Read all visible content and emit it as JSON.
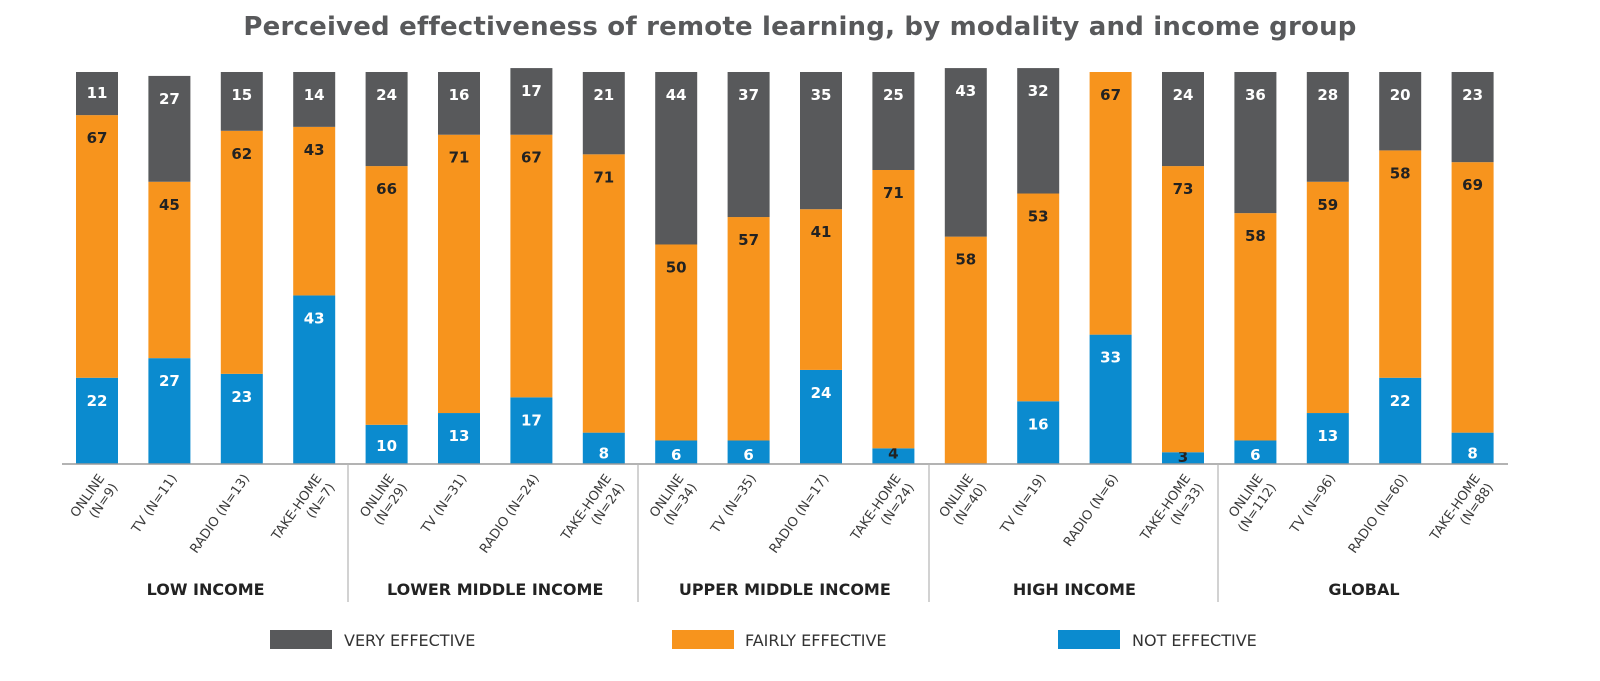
{
  "chart_data": {
    "type": "bar",
    "stacked": true,
    "title": "Perceived effectiveness of remote learning, by modality and income group",
    "ylim": [
      0,
      100
    ],
    "grid": false,
    "legend_position": "bottom",
    "colors": {
      "very_effective": "#58595b",
      "fairly_effective": "#f7941d",
      "not_effective": "#0b8bcf"
    },
    "legend": [
      {
        "key": "very_effective",
        "label": "VERY EFFECTIVE"
      },
      {
        "key": "fairly_effective",
        "label": "FAIRLY EFFECTIVE"
      },
      {
        "key": "not_effective",
        "label": "NOT EFFECTIVE"
      }
    ],
    "groups": [
      {
        "name": "LOW INCOME",
        "bars": [
          {
            "label_lines": [
              "ONLINE",
              "(N=9)"
            ],
            "not_effective": 22,
            "fairly_effective": 67,
            "very_effective": 11
          },
          {
            "label_lines": [
              "TV (N=11)"
            ],
            "not_effective": 27,
            "fairly_effective": 45,
            "very_effective": 27
          },
          {
            "label_lines": [
              "RADIO (N=13)"
            ],
            "not_effective": 23,
            "fairly_effective": 62,
            "very_effective": 15
          },
          {
            "label_lines": [
              "TAKE-HOME",
              "(N=7)"
            ],
            "not_effective": 43,
            "fairly_effective": 43,
            "very_effective": 14
          }
        ]
      },
      {
        "name": "LOWER MIDDLE INCOME",
        "bars": [
          {
            "label_lines": [
              "ONLINE",
              "(N=29)"
            ],
            "not_effective": 10,
            "fairly_effective": 66,
            "very_effective": 24
          },
          {
            "label_lines": [
              "TV (N=31)"
            ],
            "not_effective": 13,
            "fairly_effective": 71,
            "very_effective": 16
          },
          {
            "label_lines": [
              "RADIO (N=24)"
            ],
            "not_effective": 17,
            "fairly_effective": 67,
            "very_effective": 17
          },
          {
            "label_lines": [
              "TAKE-HOME",
              "(N=24)"
            ],
            "not_effective": 8,
            "fairly_effective": 71,
            "very_effective": 21
          }
        ]
      },
      {
        "name": "UPPER MIDDLE INCOME",
        "bars": [
          {
            "label_lines": [
              "ONLINE",
              "(N=34)"
            ],
            "not_effective": 6,
            "fairly_effective": 50,
            "very_effective": 44
          },
          {
            "label_lines": [
              "TV (N=35)"
            ],
            "not_effective": 6,
            "fairly_effective": 57,
            "very_effective": 37
          },
          {
            "label_lines": [
              "RADIO (N=17)"
            ],
            "not_effective": 24,
            "fairly_effective": 41,
            "very_effective": 35
          },
          {
            "label_lines": [
              "TAKE-HOME",
              "(N=24)"
            ],
            "not_effective": 4,
            "fairly_effective": 71,
            "very_effective": 25
          }
        ]
      },
      {
        "name": "HIGH INCOME",
        "bars": [
          {
            "label_lines": [
              "ONLINE",
              "(N=40)"
            ],
            "not_effective": 0,
            "fairly_effective": 58,
            "very_effective": 43
          },
          {
            "label_lines": [
              "TV (N=19)"
            ],
            "not_effective": 16,
            "fairly_effective": 53,
            "very_effective": 32
          },
          {
            "label_lines": [
              "RADIO (N=6)"
            ],
            "not_effective": 33,
            "fairly_effective": 67,
            "very_effective": 0
          },
          {
            "label_lines": [
              "TAKE-HOME",
              "(N=33)"
            ],
            "not_effective": 3,
            "fairly_effective": 73,
            "very_effective": 24
          }
        ]
      },
      {
        "name": "GLOBAL",
        "bars": [
          {
            "label_lines": [
              "ONLINE",
              "(N=112)"
            ],
            "not_effective": 6,
            "fairly_effective": 58,
            "very_effective": 36
          },
          {
            "label_lines": [
              "TV (N=96)"
            ],
            "not_effective": 13,
            "fairly_effective": 59,
            "very_effective": 28
          },
          {
            "label_lines": [
              "RADIO (N=60)"
            ],
            "not_effective": 22,
            "fairly_effective": 58,
            "very_effective": 20
          },
          {
            "label_lines": [
              "TAKE-HOME",
              "(N=88)"
            ],
            "not_effective": 8,
            "fairly_effective": 69,
            "very_effective": 23
          }
        ]
      }
    ]
  }
}
